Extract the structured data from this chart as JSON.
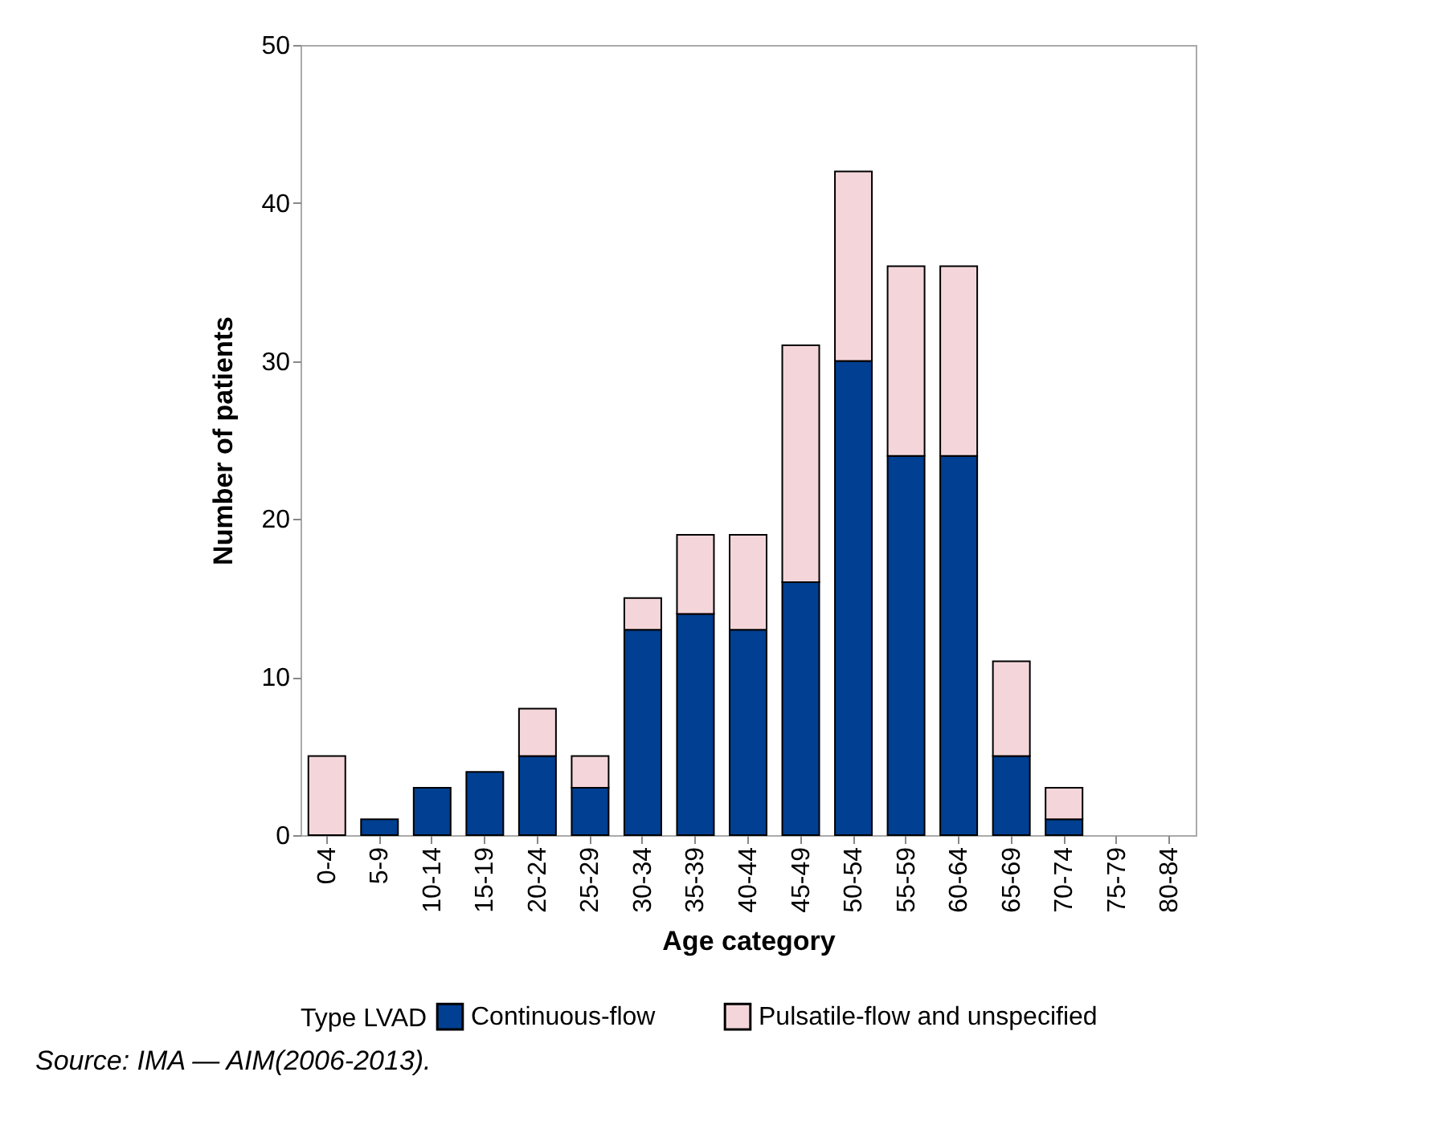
{
  "chart_data": {
    "type": "bar",
    "stacked": true,
    "xlabel": "Age category",
    "ylabel": "Number of patients",
    "legend_title": "Type LVAD",
    "categories": [
      "0-4",
      "5-9",
      "10-14",
      "15-19",
      "20-24",
      "25-29",
      "30-34",
      "35-39",
      "40-44",
      "45-49",
      "50-54",
      "55-59",
      "60-64",
      "65-69",
      "70-74",
      "75-79",
      "80-84"
    ],
    "series": [
      {
        "name": "Continuous-flow",
        "color": "#003f91",
        "values": [
          0,
          1,
          3,
          4,
          5,
          3,
          13,
          14,
          13,
          16,
          30,
          24,
          24,
          5,
          1,
          0,
          0
        ]
      },
      {
        "name": "Pulsatile-flow and unspecified",
        "color": "#f4d6da",
        "values": [
          5,
          0,
          0,
          0,
          3,
          2,
          2,
          5,
          6,
          15,
          12,
          12,
          12,
          6,
          2,
          0,
          0
        ]
      }
    ],
    "ylim": [
      0,
      50
    ],
    "yticks": [
      0,
      10,
      20,
      30,
      40,
      50
    ],
    "grid": false,
    "legend": "bottom",
    "annotations": [
      "Source: IMA — AIM(2006-2013)."
    ]
  }
}
